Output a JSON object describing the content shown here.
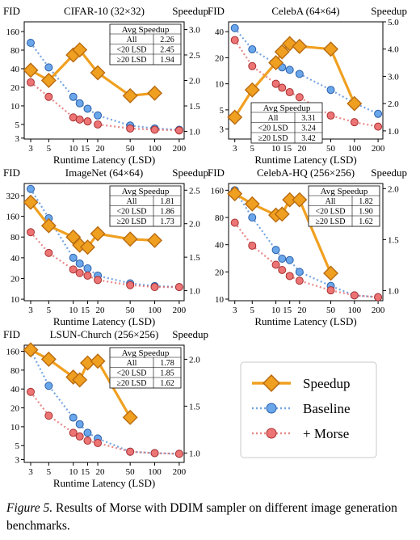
{
  "caption": {
    "label": "Figure 5.",
    "text": "Results of Morse with DDIM sampler on different image generation benchmarks."
  },
  "legend": {
    "speedup": "Speedup",
    "baseline": "Baseline",
    "morse": "+ Morse"
  },
  "colors": {
    "speedup": "#f0a020",
    "speedup_edge": "#b86a10",
    "baseline": "#3a7fd6",
    "morse": "#e05555"
  },
  "chart_data": [
    {
      "type": "line",
      "title": "CIFAR-10 (32×32)",
      "ylabel": "FID",
      "y2label": "Speedup",
      "xlabel": "Runtime Latency (LSD)",
      "x_scale": "log",
      "y_scale": "log",
      "x_ticks": [
        3,
        5,
        10,
        15,
        20,
        50,
        100,
        200
      ],
      "x_tick_labels": [
        "3",
        "5",
        "10",
        "15",
        "20",
        "50",
        "100",
        "200"
      ],
      "xlim": [
        2.5,
        230
      ],
      "y_ticks": [
        3,
        5,
        10,
        20,
        40,
        80,
        160
      ],
      "ylim": [
        2.9,
        230
      ],
      "y2_ticks": [
        1.0,
        1.5,
        2.0,
        2.5,
        3.0
      ],
      "y2lim": [
        0.85,
        3.15
      ],
      "series": [
        {
          "name": "Baseline",
          "x": [
            3,
            5,
            10,
            12,
            15,
            20,
            50,
            100,
            200
          ],
          "y": [
            105,
            42,
            14,
            11,
            9,
            7,
            4.8,
            4.3,
            4.1
          ]
        },
        {
          "name": "+ Morse",
          "x": [
            3,
            5,
            10,
            12,
            15,
            20,
            50,
            100,
            200
          ],
          "y": [
            24,
            14,
            6.5,
            6.0,
            5.6,
            5.0,
            4.3,
            4.1,
            4.0
          ]
        },
        {
          "name": "Speedup",
          "axis": "right",
          "x": [
            3,
            5,
            10,
            12,
            20,
            50,
            100
          ],
          "y": [
            2.2,
            2.0,
            2.5,
            2.6,
            2.15,
            1.7,
            1.75
          ]
        }
      ],
      "table": {
        "header": "Avg Speedup",
        "rows": [
          [
            "All",
            "2.26"
          ],
          [
            "<20 LSD",
            "2.45"
          ],
          [
            "≥20 LSD",
            "1.94"
          ]
        ]
      }
    },
    {
      "type": "line",
      "title": "CelebA (64×64)",
      "ylabel": "FID",
      "y2label": "Speedup",
      "xlabel": "Runtime Latency (LSD)",
      "x_scale": "log",
      "y_scale": "log",
      "x_ticks": [
        3,
        5,
        10,
        15,
        20,
        50,
        100,
        200
      ],
      "x_tick_labels": [
        "3",
        "5",
        "10",
        "15",
        "20",
        "50",
        "100",
        "200"
      ],
      "xlim": [
        2.5,
        230
      ],
      "y_ticks": [
        3,
        5,
        10,
        20,
        40
      ],
      "ylim": [
        2.3,
        52
      ],
      "y2_ticks": [
        1.0,
        2.0,
        3.0,
        4.0,
        5.0
      ],
      "y2lim": [
        0.7,
        5.0
      ],
      "series": [
        {
          "name": "Baseline",
          "x": [
            3,
            5,
            10,
            12,
            15,
            20,
            50,
            100,
            200
          ],
          "y": [
            44,
            25,
            17,
            15.5,
            14.5,
            13,
            8.5,
            6,
            4.5
          ]
        },
        {
          "name": "+ Morse",
          "x": [
            3,
            5,
            10,
            12,
            15,
            20,
            50,
            100,
            200
          ],
          "y": [
            32,
            16,
            10,
            9,
            8,
            7,
            4.3,
            3.6,
            3.2
          ]
        },
        {
          "name": "Speedup",
          "axis": "right",
          "x": [
            3,
            5,
            10,
            12,
            15,
            20,
            50,
            100
          ],
          "y": [
            1.5,
            2.5,
            3.5,
            3.9,
            4.2,
            4.1,
            4.0,
            2.0
          ]
        }
      ],
      "table": {
        "header": "Avg Speedup",
        "rows": [
          [
            "All",
            "3.31"
          ],
          [
            "<20 LSD",
            "3.24"
          ],
          [
            "≥20 LSD",
            "3.42"
          ]
        ]
      }
    },
    {
      "type": "line",
      "title": "ImageNet (64×64)",
      "ylabel": "FID",
      "y2label": "Speedup",
      "xlabel": "Runtime Latency (LSD)",
      "x_scale": "log",
      "y_scale": "log",
      "x_ticks": [
        3,
        5,
        10,
        15,
        20,
        50,
        100,
        200
      ],
      "x_tick_labels": [
        "3",
        "5",
        "10",
        "15",
        "20",
        "50",
        "100",
        "200"
      ],
      "xlim": [
        2.5,
        230
      ],
      "y_ticks": [
        10,
        20,
        40,
        80,
        160,
        320
      ],
      "ylim": [
        9.5,
        480
      ],
      "y2_ticks": [
        1.0,
        1.5,
        2.0,
        2.5
      ],
      "y2lim": [
        0.85,
        2.6
      ],
      "series": [
        {
          "name": "Baseline",
          "x": [
            3,
            5,
            10,
            12,
            15,
            20,
            50,
            100,
            200
          ],
          "y": [
            400,
            150,
            40,
            33,
            28,
            22,
            17,
            15.5,
            15
          ]
        },
        {
          "name": "+ Morse",
          "x": [
            3,
            5,
            10,
            12,
            15,
            20,
            50,
            100,
            200
          ],
          "y": [
            94,
            47,
            27,
            24,
            22,
            19,
            16,
            15,
            15
          ]
        },
        {
          "name": "Speedup",
          "axis": "right",
          "x": [
            3,
            5,
            10,
            12,
            15,
            20,
            50,
            100
          ],
          "y": [
            2.32,
            1.97,
            1.8,
            1.68,
            1.65,
            1.85,
            1.77,
            1.75
          ]
        }
      ],
      "table": {
        "header": "Avg Speedup",
        "rows": [
          [
            "All",
            "1.81"
          ],
          [
            "<20 LSD",
            "1.86"
          ],
          [
            "≥20 LSD",
            "1.73"
          ]
        ]
      }
    },
    {
      "type": "line",
      "title": "CelebA-HQ (256×256)",
      "ylabel": "FID",
      "y2label": "Speedup",
      "xlabel": "Runtime Latency (LSD)",
      "x_scale": "log",
      "y_scale": "log",
      "x_ticks": [
        3,
        5,
        10,
        15,
        20,
        50,
        100,
        200
      ],
      "x_tick_labels": [
        "3",
        "5",
        "10",
        "15",
        "20",
        "50",
        "100",
        "200"
      ],
      "xlim": [
        2.5,
        230
      ],
      "y_ticks": [
        10,
        20,
        40,
        80,
        160
      ],
      "ylim": [
        9.6,
        190
      ],
      "y2_ticks": [
        1.0,
        1.5,
        2.0
      ],
      "y2lim": [
        0.9,
        2.05
      ],
      "series": [
        {
          "name": "Baseline",
          "x": [
            3,
            5,
            10,
            12,
            15,
            20,
            50,
            100,
            200
          ],
          "y": [
            160,
            80,
            35,
            28,
            27,
            20,
            14,
            11,
            10.5
          ]
        },
        {
          "name": "+ Morse",
          "x": [
            3,
            5,
            10,
            12,
            15,
            20,
            50,
            100,
            200
          ],
          "y": [
            70,
            39,
            24,
            21,
            18,
            16,
            12.5,
            11,
            10.5
          ]
        },
        {
          "name": "Speedup",
          "axis": "right",
          "x": [
            3,
            5,
            10,
            12,
            15,
            20,
            50
          ],
          "y": [
            1.95,
            1.85,
            1.74,
            1.75,
            1.89,
            1.89,
            1.17
          ]
        }
      ],
      "table": {
        "header": "Avg Speedup",
        "rows": [
          [
            "All",
            "1.82"
          ],
          [
            "<20 LSD",
            "1.90"
          ],
          [
            "≥20 LSD",
            "1.62"
          ]
        ]
      }
    },
    {
      "type": "line",
      "title": "LSUN-Church (256×256)",
      "ylabel": "FID",
      "y2label": "Speedup",
      "xlabel": "Runtime Latency (LSD)",
      "x_scale": "log",
      "y_scale": "log",
      "x_ticks": [
        3,
        5,
        10,
        15,
        20,
        50,
        100,
        200
      ],
      "x_tick_labels": [
        "3",
        "5",
        "10",
        "15",
        "20",
        "50",
        "100",
        "200"
      ],
      "xlim": [
        2.5,
        230
      ],
      "y_ticks": [
        3,
        5,
        10,
        20,
        40,
        80,
        160
      ],
      "ylim": [
        2.7,
        200
      ],
      "y2_ticks": [
        1.0,
        1.5,
        2.0
      ],
      "y2lim": [
        0.9,
        2.15
      ],
      "series": [
        {
          "name": "Baseline",
          "x": [
            3,
            5,
            10,
            12,
            15,
            20,
            50,
            100,
            200
          ],
          "y": [
            165,
            45,
            14,
            11,
            8,
            6.5,
            4,
            3.8,
            3.7
          ]
        },
        {
          "name": "+ Morse",
          "x": [
            3,
            5,
            10,
            12,
            15,
            20,
            50,
            100,
            200
          ],
          "y": [
            36,
            15,
            8,
            7,
            6,
            5.5,
            4,
            3.8,
            3.7
          ]
        },
        {
          "name": "Speedup",
          "axis": "right",
          "x": [
            3,
            5,
            10,
            12,
            15,
            20,
            50
          ],
          "y": [
            2.1,
            2.0,
            1.81,
            1.78,
            1.96,
            1.98,
            1.38
          ]
        }
      ],
      "table": {
        "header": "Avg Speedup",
        "rows": [
          [
            "All",
            "1.78"
          ],
          [
            "<20 LSD",
            "1.85"
          ],
          [
            "≥20 LSD",
            "1.62"
          ]
        ]
      }
    }
  ]
}
